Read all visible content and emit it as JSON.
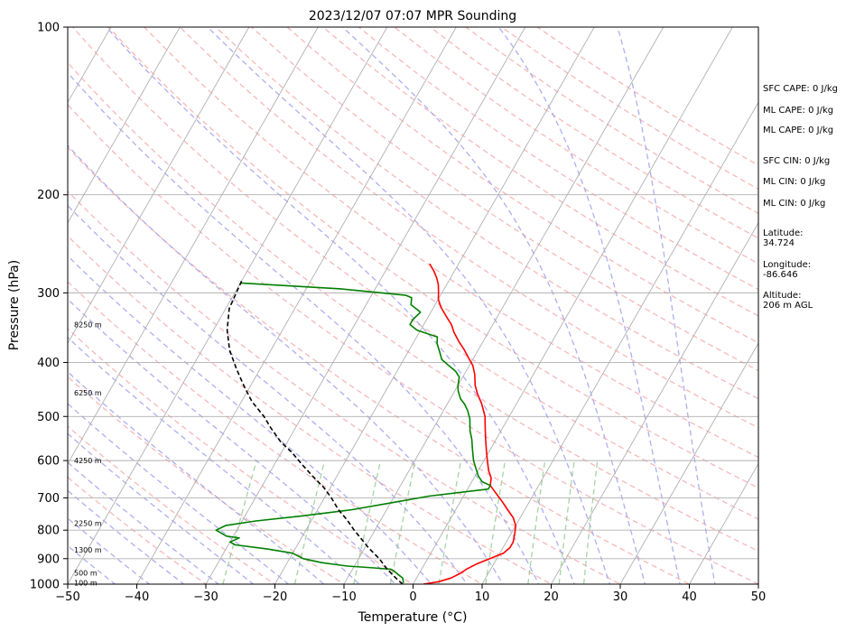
{
  "chart_data": {
    "type": "line",
    "title": "2023/12/07 07:07 MPR Sounding",
    "xlabel": "Temperature (°C)",
    "ylabel": "Pressure (hPa)",
    "xlim": [
      -50,
      50
    ],
    "ylim": [
      1000,
      100
    ],
    "y_scale": "log",
    "x_ticks": [
      -50,
      -40,
      -30,
      -20,
      -10,
      0,
      10,
      20,
      30,
      40,
      50
    ],
    "y_ticks": [
      100,
      200,
      300,
      400,
      500,
      600,
      700,
      800,
      900,
      1000
    ],
    "grid": true,
    "skew": "isotherms lean right (skew-T log-p)",
    "series": [
      {
        "color": "#ff0000",
        "points": [
          [
            1.5,
            1000
          ],
          [
            3.5,
            990
          ],
          [
            5,
            975
          ],
          [
            6,
            955
          ],
          [
            6.5,
            940
          ],
          [
            7.5,
            920
          ],
          [
            9,
            900
          ],
          [
            10.5,
            880
          ],
          [
            11,
            860
          ],
          [
            11,
            840
          ],
          [
            10.5,
            810
          ],
          [
            10,
            785
          ],
          [
            9,
            760
          ],
          [
            7.5,
            735
          ],
          [
            6,
            710
          ],
          [
            5,
            695
          ],
          [
            4,
            680
          ],
          [
            3,
            665
          ],
          [
            2.5,
            645
          ],
          [
            1.5,
            625
          ],
          [
            0.5,
            600
          ],
          [
            -0.5,
            575
          ],
          [
            -1.5,
            550
          ],
          [
            -2.5,
            525
          ],
          [
            -3.5,
            500
          ],
          [
            -5,
            475
          ],
          [
            -6.5,
            455
          ],
          [
            -7.5,
            440
          ],
          [
            -8.5,
            420
          ],
          [
            -9.5,
            405
          ],
          [
            -10.5,
            395
          ],
          [
            -12,
            380
          ],
          [
            -13.5,
            367
          ],
          [
            -15,
            353
          ],
          [
            -16,
            342
          ],
          [
            -17.5,
            330
          ],
          [
            -19,
            318
          ],
          [
            -20,
            308
          ],
          [
            -20.5,
            300
          ],
          [
            -21.2,
            290
          ],
          [
            -22,
            282
          ],
          [
            -23,
            274
          ],
          [
            -24.2,
            266
          ]
        ]
      },
      {
        "color": "#008000",
        "points": [
          [
            -1.5,
            995
          ],
          [
            -2,
            975
          ],
          [
            -3,
            960
          ],
          [
            -4,
            945
          ],
          [
            -4.5,
            940
          ],
          [
            -7,
            935
          ],
          [
            -11,
            928
          ],
          [
            -15,
            915
          ],
          [
            -18,
            900
          ],
          [
            -20,
            880
          ],
          [
            -24,
            865
          ],
          [
            -29,
            850
          ],
          [
            -30,
            840
          ],
          [
            -29,
            826
          ],
          [
            -31,
            820
          ],
          [
            -33,
            800
          ],
          [
            -32,
            785
          ],
          [
            -28,
            770
          ],
          [
            -22,
            755
          ],
          [
            -15,
            735
          ],
          [
            -10,
            715
          ],
          [
            -5,
            695
          ],
          [
            3,
            675
          ],
          [
            3,
            665
          ],
          [
            1.5,
            655
          ],
          [
            0.5,
            640
          ],
          [
            -0.5,
            620
          ],
          [
            -1.5,
            600
          ],
          [
            -2.5,
            575
          ],
          [
            -3.5,
            550
          ],
          [
            -4.5,
            530
          ],
          [
            -5.5,
            505
          ],
          [
            -6.5,
            488
          ],
          [
            -7.5,
            475
          ],
          [
            -8.5,
            465
          ],
          [
            -9.5,
            450
          ],
          [
            -10,
            440
          ],
          [
            -10.5,
            425
          ],
          [
            -11.5,
            415
          ],
          [
            -13,
            405
          ],
          [
            -14.5,
            395
          ],
          [
            -15.5,
            382
          ],
          [
            -16.5,
            370
          ],
          [
            -17,
            360
          ],
          [
            -20.5,
            350
          ],
          [
            -22,
            342
          ],
          [
            -22,
            335
          ],
          [
            -21.5,
            325
          ],
          [
            -23.5,
            315
          ],
          [
            -24,
            306
          ],
          [
            -25,
            303
          ],
          [
            -35,
            295
          ],
          [
            -50,
            288
          ]
        ]
      },
      {
        "color": "#000000",
        "dash": "dashed",
        "points": [
          [
            -1.5,
            1000
          ],
          [
            -3,
            975
          ],
          [
            -5,
            940
          ],
          [
            -7,
            900
          ],
          [
            -9.5,
            860
          ],
          [
            -11.5,
            825
          ],
          [
            -13,
            800
          ],
          [
            -15,
            765
          ],
          [
            -17,
            735
          ],
          [
            -19,
            700
          ],
          [
            -21,
            670
          ],
          [
            -23.5,
            640
          ],
          [
            -26,
            610
          ],
          [
            -28.5,
            580
          ],
          [
            -31,
            555
          ],
          [
            -33.5,
            525
          ],
          [
            -35.5,
            500
          ],
          [
            -38.5,
            470
          ],
          [
            -41,
            440
          ],
          [
            -43.5,
            410
          ],
          [
            -46,
            380
          ],
          [
            -48,
            350
          ],
          [
            -49.5,
            320
          ],
          [
            -50,
            285
          ]
        ]
      }
    ],
    "height_labels": [
      {
        "text": "100 m",
        "p": 995
      },
      {
        "text": "500 m",
        "p": 955
      },
      {
        "text": "1300 m",
        "p": 867
      },
      {
        "text": "2250 m",
        "p": 778
      },
      {
        "text": "4250 m",
        "p": 600
      },
      {
        "text": "6250 m",
        "p": 453
      },
      {
        "text": "8250 m",
        "p": 342
      }
    ],
    "background_lines": {
      "isotherm_color": "#b0b0b0",
      "dry_adiabat_color": "#f5a0a0",
      "moist_adiabat_color": "#a0a0f0",
      "mixing_ratio_color": "#90c890"
    }
  },
  "side_panel": [
    {
      "text": "SFC CAPE: 0 J/kg"
    },
    {
      "text": "ML CAPE: 0 J/kg"
    },
    {
      "text": "ML CAPE: 0 J/kg"
    },
    {
      "text": "SFC CIN: 0 J/kg"
    },
    {
      "text": "ML CIN: 0 J/kg"
    },
    {
      "text": "ML CIN: 0 J/kg"
    },
    {
      "text": "Latitude:\n34.724"
    },
    {
      "text": "Longitude:\n-86.646"
    },
    {
      "text": "Altitude:\n206 m AGL"
    }
  ]
}
